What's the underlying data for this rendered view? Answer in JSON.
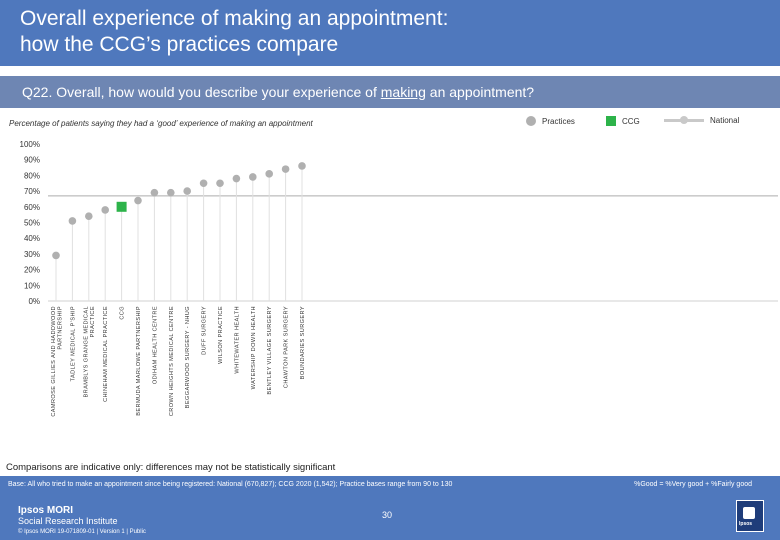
{
  "header": {
    "title_line1": "Overall experience of making an appointment:",
    "title_line2": "how the CCG’s practices compare"
  },
  "question": {
    "prefix": "Q22. Overall, how would you describe your experience of ",
    "underlined": "making",
    "suffix": " an appointment?"
  },
  "subtitle": "Percentage of patients saying they had a ‘good’ experience of making an appointment",
  "legend": {
    "practices": "Practices",
    "ccg": "CCG",
    "national": "National"
  },
  "colors": {
    "practice_dot": "#b0b0b0",
    "ccg_square": "#2db34a",
    "national_line": "#cccccc",
    "header": "#4f78bd",
    "question_bar": "#6e86b3"
  },
  "chart_data": {
    "type": "scatter",
    "title": "Percentage of patients saying they had a ‘good’ experience of making an appointment",
    "ylim": [
      0,
      100
    ],
    "yticks": [
      "0%",
      "10%",
      "20%",
      "30%",
      "40%",
      "50%",
      "60%",
      "70%",
      "80%",
      "90%",
      "100%"
    ],
    "national_value": 67,
    "categories": [
      "CAMROSE GILLIES AND HADDWOOD PARTNERSHIP",
      "TADLEY MEDICAL P’SHIP",
      "BRAMBLYS GRANGE MEDICAL PRACTICE",
      "CHINEHAM MEDICAL PRACTICE",
      "CCG",
      "BERMUDA MARLOWE PARTNERSHIP",
      "ODIHAM HEALTH CENTRE",
      "CROWN HEIGHTS MEDICAL CENTRE",
      "BEGGARWOOD SURGERY - NHUG",
      "DUFF SURGERY",
      "WILSON PRACTICE",
      "WHITEWATER HEALTH",
      "WATERSHIP DOWN HEALTH",
      "BENTLEY VILLAGE SURGERY",
      "CHAWTON PARK SURGERY",
      "BOUNDARIES SURGERY"
    ],
    "values": [
      29,
      51,
      54,
      58,
      60,
      64,
      69,
      69,
      70,
      75,
      75,
      78,
      79,
      81,
      84,
      86
    ],
    "types": [
      "practice",
      "practice",
      "practice",
      "practice",
      "ccg",
      "practice",
      "practice",
      "practice",
      "practice",
      "practice",
      "practice",
      "practice",
      "practice",
      "practice",
      "practice",
      "practice"
    ]
  },
  "footer": {
    "note": "Comparisons are indicative only: differences may not be statistically significant",
    "base": "Base: All who tried to make an appointment since being registered: National (670,827); CCG 2020 (1,542); Practice bases range from 90 to 130",
    "base_def": "%Good = %Very good + %Fairly good",
    "brand_line1": "Ipsos MORI",
    "brand_line2": "Social Research Institute",
    "copyright": "© Ipsos MORI     19-071809-01 | Version 1 | Public",
    "page": "30",
    "logo_text": "Ipsos"
  }
}
